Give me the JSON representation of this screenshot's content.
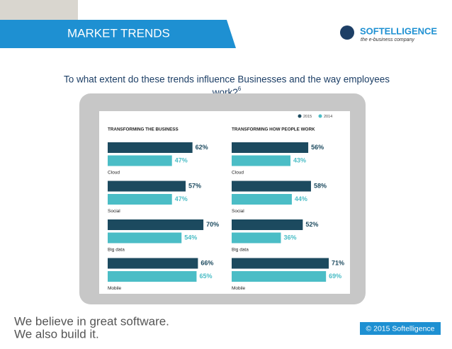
{
  "header": {
    "title": "MARKET TRENDS",
    "logo": "SOFTELLIGENCE",
    "tagline": "the e-business company"
  },
  "question": [
    "To what extent do these trends influence Businesses and the way employees",
    "work?"
  ],
  "footnote": "6",
  "footer": {
    "slogan": [
      "We believe in great software.",
      "We also build it."
    ],
    "copyright": "© 2015 Softelligence"
  },
  "chart_data": [
    {
      "type": "bar",
      "title": "TRANSFORMING THE BUSINESS",
      "categories": [
        "Cloud",
        "Social",
        "Big data",
        "Mobile"
      ],
      "series": [
        {
          "color": "#1c4a5f",
          "values": [
            62,
            57,
            70,
            66
          ],
          "value_labels": [
            "62%",
            "57%",
            "70%",
            "66%"
          ]
        },
        {
          "color": "#4bbdc6",
          "values": [
            47,
            47,
            54,
            65
          ],
          "value_labels": [
            "47%",
            "47%",
            "54%",
            "65%"
          ]
        }
      ]
    },
    {
      "type": "bar",
      "title": "TRANSFORMING HOW PEOPLE WORK",
      "categories": [
        "Cloud",
        "Social",
        "Big data",
        "Mobile"
      ],
      "legend": "top-right",
      "series": [
        {
          "name": "2015",
          "color": "#1c4a5f",
          "values": [
            56,
            58,
            52,
            71
          ],
          "value_labels": [
            "56%",
            "58%",
            "52%",
            "71%"
          ]
        },
        {
          "name": "2014",
          "color": "#4bbdc6",
          "values": [
            43,
            44,
            36,
            69
          ],
          "value_labels": [
            "43%",
            "44%",
            "36%",
            "69%"
          ]
        }
      ]
    }
  ]
}
